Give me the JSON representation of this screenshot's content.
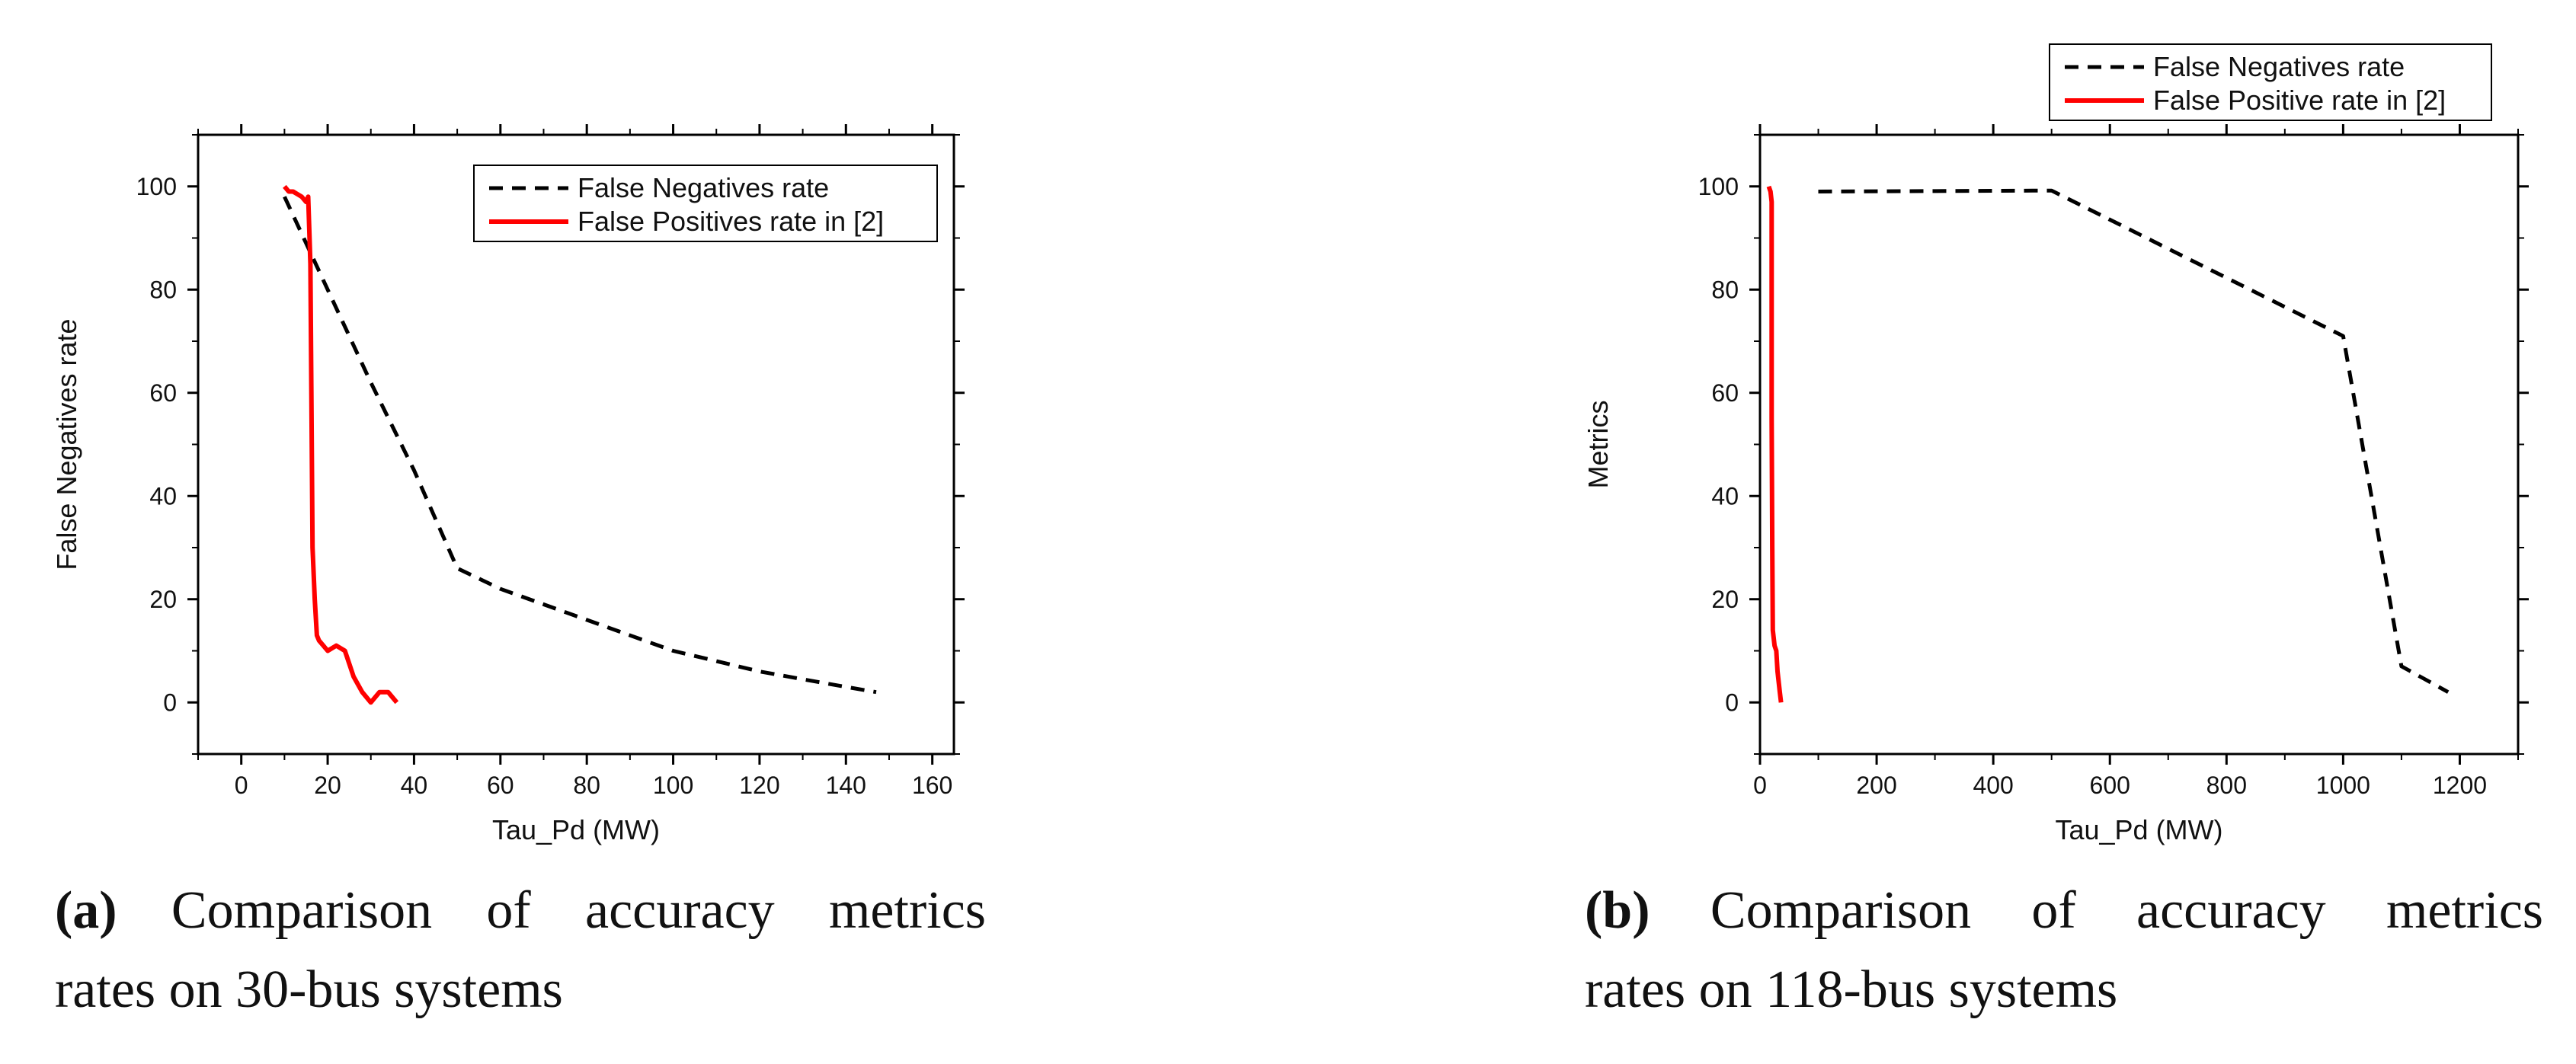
{
  "chart_data": [
    {
      "type": "line",
      "panel": "a",
      "xlabel": "Tau_Pd (MW)",
      "ylabel": "False Negatives rate",
      "xlim": [
        -10,
        165
      ],
      "ylim": [
        -10,
        110
      ],
      "xticks": [
        0,
        20,
        40,
        60,
        80,
        100,
        120,
        140,
        160
      ],
      "yticks": [
        0,
        20,
        40,
        60,
        80,
        100
      ],
      "legend_position": "top-right",
      "series": [
        {
          "name": "False Negatives rate",
          "style": "dashed",
          "color": "#000000",
          "x": [
            10,
            20,
            30,
            40,
            50,
            60,
            70,
            80,
            90,
            100,
            110,
            120,
            130,
            140,
            147
          ],
          "y": [
            98,
            80,
            62,
            45,
            26,
            22,
            19,
            16,
            13,
            10,
            8,
            6,
            4.5,
            3,
            2
          ]
        },
        {
          "name": "False Positives rate in [2]",
          "style": "solid",
          "color": "#ff0000",
          "x": [
            10,
            11,
            12,
            13,
            14,
            15,
            15.5,
            16,
            16.5,
            17,
            17.5,
            18,
            19,
            20,
            22,
            24,
            26,
            28,
            30,
            32,
            34,
            36
          ],
          "y": [
            100,
            99,
            99,
            98.5,
            98,
            97,
            98,
            85,
            30,
            20,
            13,
            12,
            11,
            10,
            11,
            10,
            5,
            2,
            0,
            2,
            2,
            0
          ]
        }
      ],
      "caption_tag": "(a)",
      "caption_lines": [
        "Comparison of accuracy metrics",
        "rates on 30-bus systems"
      ]
    },
    {
      "type": "line",
      "panel": "b",
      "xlabel": "Tau_Pd (MW)",
      "ylabel": "Metrics",
      "xlim": [
        0,
        1300
      ],
      "ylim": [
        -10,
        110
      ],
      "xticks": [
        0,
        200,
        400,
        600,
        800,
        1000,
        1200
      ],
      "yticks": [
        0,
        20,
        40,
        60,
        80,
        100
      ],
      "legend_position": "above-right",
      "series": [
        {
          "name": "False Negatives rate",
          "style": "dashed",
          "color": "#000000",
          "x": [
            100,
            500,
            1000,
            1100,
            1180
          ],
          "y": [
            99,
            99.2,
            71,
            7,
            2
          ]
        },
        {
          "name": "False Positive rate in [2]",
          "style": "solid",
          "color": "#ff0000",
          "x": [
            15,
            18,
            20,
            20,
            21,
            22,
            25,
            28,
            30,
            34,
            36
          ],
          "y": [
            100,
            99,
            97,
            55,
            30,
            14,
            11,
            10,
            6,
            2,
            0
          ]
        }
      ],
      "caption_tag": "(b)",
      "caption_lines": [
        "Comparison of accuracy metrics",
        "rates on 118-bus systems"
      ]
    }
  ]
}
